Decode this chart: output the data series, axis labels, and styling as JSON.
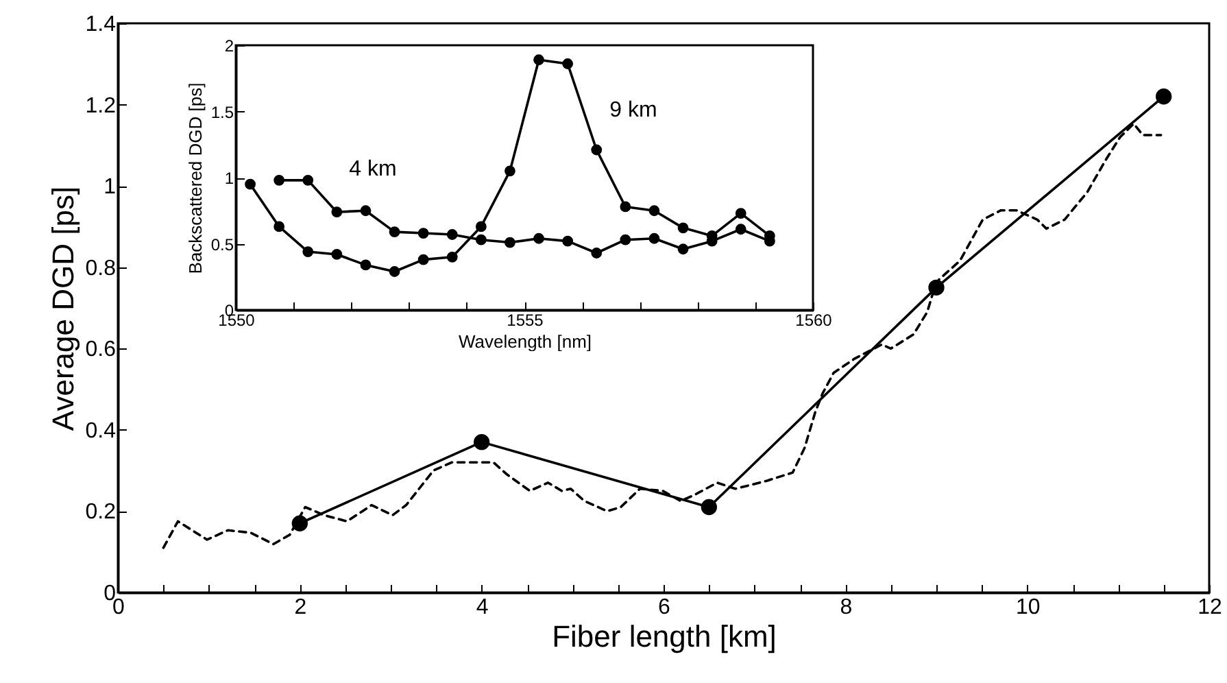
{
  "chart_data": [
    {
      "type": "line",
      "xlabel": "Fiber length [km]",
      "ylabel": "Average DGD [ps]",
      "xlim": [
        0,
        12
      ],
      "ylim": [
        0,
        1.4
      ],
      "xticks": [
        0,
        {
          "value": 0.5,
          "label": null
        },
        {
          "value": 1,
          "label": null
        },
        {
          "value": 1.5,
          "label": null
        },
        2,
        {
          "value": 2.5,
          "label": null
        },
        {
          "value": 3,
          "label": null
        },
        {
          "value": 3.5,
          "label": null
        },
        4,
        {
          "value": 4.5,
          "label": null
        },
        {
          "value": 5,
          "label": null
        },
        {
          "value": 5.5,
          "label": null
        },
        6,
        {
          "value": 6.5,
          "label": null
        },
        {
          "value": 7,
          "label": null
        },
        {
          "value": 7.5,
          "label": null
        },
        8,
        {
          "value": 8.5,
          "label": null
        },
        {
          "value": 9,
          "label": null
        },
        {
          "value": 9.5,
          "label": null
        },
        10,
        {
          "value": 10.5,
          "label": null
        },
        {
          "value": 11,
          "label": null
        },
        {
          "value": 11.5,
          "label": null
        },
        12
      ],
      "yticks": [
        0,
        0.2,
        0.4,
        0.6,
        0.8,
        1,
        1.2,
        1.4
      ],
      "grid": false,
      "legend": false,
      "series": [
        {
          "type": "line",
          "color": "#000000",
          "line_style": "dashed",
          "marker": "none",
          "x": [
            0.5,
            0.66,
            0.98,
            1.21,
            1.46,
            1.71,
            1.89,
            2.06,
            2.27,
            2.52,
            2.79,
            3.02,
            3.17,
            3.47,
            3.67,
            4.13,
            4.28,
            4.53,
            4.73,
            4.88,
            4.98,
            5.13,
            5.38,
            5.53,
            5.74,
            5.99,
            6.19,
            6.34,
            6.59,
            6.79,
            7.14,
            7.42,
            7.55,
            7.67,
            7.75,
            7.87,
            8.1,
            8.4,
            8.5,
            8.75,
            8.9,
            8.98,
            9.03,
            9.26,
            9.51,
            9.71,
            9.88,
            10.11,
            10.21,
            10.41,
            10.66,
            10.86,
            11.02,
            11.17,
            11.27,
            11.47
          ],
          "values": [
            0.11,
            0.175,
            0.13,
            0.153,
            0.147,
            0.119,
            0.142,
            0.21,
            0.19,
            0.175,
            0.215,
            0.19,
            0.215,
            0.3,
            0.32,
            0.32,
            0.29,
            0.25,
            0.27,
            0.25,
            0.255,
            0.225,
            0.2,
            0.21,
            0.255,
            0.25,
            0.225,
            0.24,
            0.27,
            0.255,
            0.275,
            0.295,
            0.355,
            0.445,
            0.49,
            0.54,
            0.575,
            0.61,
            0.6,
            0.635,
            0.69,
            0.75,
            0.77,
            0.816,
            0.917,
            0.94,
            0.94,
            0.917,
            0.895,
            0.917,
            0.985,
            1.063,
            1.12,
            1.153,
            1.125,
            1.125
          ]
        },
        {
          "type": "line",
          "color": "#000000",
          "line_style": "solid",
          "marker": "circle",
          "x": [
            2,
            4,
            6.5,
            9,
            11.5
          ],
          "values": [
            0.17,
            0.37,
            0.21,
            0.75,
            1.22
          ]
        }
      ]
    },
    {
      "type": "line",
      "xlabel": "Wavelength [nm]",
      "ylabel": "Backscattered DGD [ps]",
      "xlim": [
        1550,
        1560
      ],
      "ylim": [
        0,
        2
      ],
      "xticks": [
        1550,
        {
          "value": 1551,
          "label": null
        },
        {
          "value": 1552,
          "label": null
        },
        {
          "value": 1553,
          "label": null
        },
        {
          "value": 1554,
          "label": null
        },
        1555,
        {
          "value": 1556,
          "label": null
        },
        {
          "value": 1557,
          "label": null
        },
        {
          "value": 1558,
          "label": null
        },
        {
          "value": 1559,
          "label": null
        },
        1560
      ],
      "yticks": [
        0,
        0.5,
        1,
        1.5,
        2
      ],
      "grid": false,
      "legend": false,
      "marker": "circle",
      "line_style": "solid",
      "x": [
        1550.25,
        1550.75,
        1551.25,
        1551.75,
        1552.25,
        1552.75,
        1553.25,
        1553.75,
        1554.25,
        1554.75,
        1555.25,
        1555.75,
        1556.25,
        1556.75,
        1557.25,
        1557.75,
        1558.25,
        1558.75,
        1559.25
      ],
      "series": [
        {
          "color": "#000000",
          "values": [
            null,
            0.98,
            0.98,
            0.74,
            0.75,
            0.59,
            0.58,
            0.57,
            0.53,
            0.51,
            0.54,
            0.52,
            0.43,
            0.53,
            0.54,
            0.46,
            0.52,
            0.61,
            0.52
          ]
        },
        {
          "color": "#000000",
          "values": [
            0.95,
            0.63,
            0.44,
            0.42,
            0.34,
            0.29,
            0.38,
            0.4,
            0.63,
            1.05,
            1.89,
            1.86,
            1.21,
            0.78,
            0.75,
            0.62,
            0.56,
            0.73,
            0.56
          ]
        }
      ],
      "annotations": [
        "4 km",
        "9 km"
      ]
    }
  ]
}
